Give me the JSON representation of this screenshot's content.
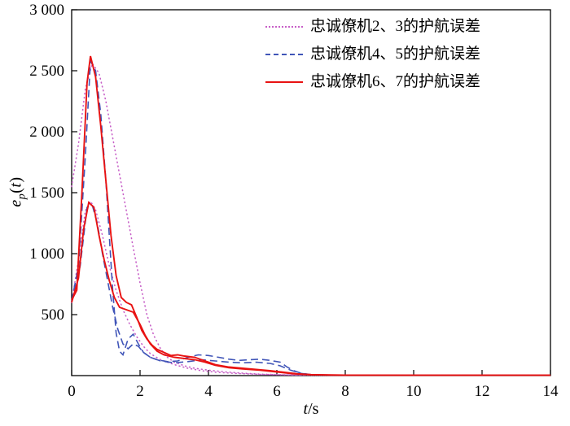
{
  "chart_data": {
    "type": "line",
    "title": "",
    "xlabel": {
      "var": "t",
      "unit": "/s"
    },
    "ylabel": {
      "base": "e",
      "sub": "p",
      "open": "(",
      "var": "t",
      "close": ")"
    },
    "xlim": [
      0,
      14
    ],
    "ylim": [
      0,
      3000
    ],
    "grid": false,
    "legend_position": "top-right-inside",
    "xticks": [
      0,
      2,
      4,
      6,
      8,
      10,
      12,
      14
    ],
    "xtick_labels": [
      "0",
      "2",
      "4",
      "6",
      "8",
      "10",
      "12",
      "14"
    ],
    "yticks": [
      500,
      1000,
      1500,
      2000,
      2500,
      3000
    ],
    "ytick_labels": [
      "500",
      "1 000",
      "1 500",
      "2 000",
      "2 500",
      "3 000"
    ],
    "series": [
      {
        "name": "忠诚僚机2、3的护航误差",
        "color": "#c75fc7",
        "dash": "dotted",
        "lines": [
          [
            [
              0,
              1550
            ],
            [
              0.2,
              1900
            ],
            [
              0.4,
              2350
            ],
            [
              0.6,
              2560
            ],
            [
              0.8,
              2480
            ],
            [
              1.0,
              2250
            ],
            [
              1.2,
              1950
            ],
            [
              1.4,
              1650
            ],
            [
              1.6,
              1350
            ],
            [
              1.8,
              1050
            ],
            [
              2.0,
              760
            ],
            [
              2.2,
              500
            ],
            [
              2.4,
              330
            ],
            [
              2.6,
              220
            ],
            [
              2.8,
              150
            ],
            [
              3.0,
              110
            ],
            [
              3.3,
              80
            ],
            [
              3.6,
              60
            ],
            [
              4.0,
              45
            ],
            [
              4.5,
              30
            ],
            [
              5.0,
              20
            ],
            [
              5.5,
              12
            ],
            [
              6.0,
              8
            ],
            [
              6.5,
              5
            ],
            [
              7.0,
              4
            ],
            [
              8.0,
              3
            ],
            [
              10.0,
              2
            ],
            [
              12.0,
              2
            ],
            [
              14.0,
              2
            ]
          ],
          [
            [
              0,
              600
            ],
            [
              0.2,
              950
            ],
            [
              0.4,
              1350
            ],
            [
              0.55,
              1430
            ],
            [
              0.7,
              1360
            ],
            [
              0.9,
              1150
            ],
            [
              1.1,
              900
            ],
            [
              1.3,
              700
            ],
            [
              1.5,
              540
            ],
            [
              1.7,
              420
            ],
            [
              1.9,
              320
            ],
            [
              2.1,
              240
            ],
            [
              2.3,
              180
            ],
            [
              2.6,
              130
            ],
            [
              3.0,
              90
            ],
            [
              3.4,
              60
            ],
            [
              3.8,
              40
            ],
            [
              4.2,
              28
            ],
            [
              4.8,
              18
            ],
            [
              5.5,
              10
            ],
            [
              6.0,
              7
            ],
            [
              6.5,
              5
            ],
            [
              7.0,
              4
            ],
            [
              8.0,
              3
            ],
            [
              14.0,
              2
            ]
          ]
        ]
      },
      {
        "name": "忠诚僚机4、5的护航误差",
        "color": "#4055b8",
        "dash": "dashed",
        "lines": [
          [
            [
              0,
              610
            ],
            [
              0.2,
              900
            ],
            [
              0.4,
              1800
            ],
            [
              0.55,
              2580
            ],
            [
              0.7,
              2500
            ],
            [
              0.85,
              2150
            ],
            [
              1.0,
              1600
            ],
            [
              1.1,
              1150
            ],
            [
              1.2,
              700
            ],
            [
              1.3,
              350
            ],
            [
              1.4,
              200
            ],
            [
              1.5,
              170
            ],
            [
              1.65,
              300
            ],
            [
              1.8,
              340
            ],
            [
              1.95,
              260
            ],
            [
              2.1,
              190
            ],
            [
              2.3,
              150
            ],
            [
              2.5,
              130
            ],
            [
              2.8,
              115
            ],
            [
              3.1,
              120
            ],
            [
              3.4,
              150
            ],
            [
              3.7,
              170
            ],
            [
              4.0,
              165
            ],
            [
              4.3,
              150
            ],
            [
              4.6,
              135
            ],
            [
              4.9,
              125
            ],
            [
              5.2,
              130
            ],
            [
              5.5,
              135
            ],
            [
              5.8,
              125
            ],
            [
              6.1,
              110
            ],
            [
              6.3,
              70
            ],
            [
              6.5,
              40
            ],
            [
              6.7,
              20
            ],
            [
              7.0,
              8
            ],
            [
              7.5,
              4
            ],
            [
              8.0,
              3
            ],
            [
              10.0,
              2
            ],
            [
              14.0,
              2
            ]
          ],
          [
            [
              0,
              600
            ],
            [
              0.25,
              900
            ],
            [
              0.45,
              1380
            ],
            [
              0.6,
              1400
            ],
            [
              0.75,
              1250
            ],
            [
              0.9,
              1000
            ],
            [
              1.05,
              780
            ],
            [
              1.2,
              560
            ],
            [
              1.35,
              380
            ],
            [
              1.5,
              260
            ],
            [
              1.65,
              220
            ],
            [
              1.8,
              260
            ],
            [
              1.95,
              240
            ],
            [
              2.1,
              190
            ],
            [
              2.3,
              150
            ],
            [
              2.6,
              120
            ],
            [
              3.0,
              105
            ],
            [
              3.4,
              115
            ],
            [
              3.8,
              130
            ],
            [
              4.2,
              120
            ],
            [
              4.6,
              110
            ],
            [
              5.0,
              105
            ],
            [
              5.4,
              110
            ],
            [
              5.8,
              100
            ],
            [
              6.1,
              80
            ],
            [
              6.4,
              45
            ],
            [
              6.7,
              18
            ],
            [
              7.0,
              7
            ],
            [
              8.0,
              3
            ],
            [
              14.0,
              2
            ]
          ]
        ]
      },
      {
        "name": "忠诚僚机6、7的护航误差",
        "color": "#e81212",
        "dash": "solid",
        "lines": [
          [
            [
              0,
              620
            ],
            [
              0.15,
              700
            ],
            [
              0.3,
              1500
            ],
            [
              0.45,
              2400
            ],
            [
              0.55,
              2620
            ],
            [
              0.7,
              2450
            ],
            [
              0.85,
              2050
            ],
            [
              1.0,
              1600
            ],
            [
              1.15,
              1150
            ],
            [
              1.3,
              820
            ],
            [
              1.45,
              640
            ],
            [
              1.6,
              600
            ],
            [
              1.75,
              580
            ],
            [
              1.9,
              480
            ],
            [
              2.05,
              370
            ],
            [
              2.2,
              300
            ],
            [
              2.35,
              250
            ],
            [
              2.5,
              215
            ],
            [
              2.7,
              190
            ],
            [
              2.9,
              165
            ],
            [
              3.1,
              170
            ],
            [
              3.3,
              160
            ],
            [
              3.6,
              150
            ],
            [
              3.9,
              120
            ],
            [
              4.2,
              90
            ],
            [
              4.6,
              70
            ],
            [
              5.0,
              60
            ],
            [
              5.4,
              50
            ],
            [
              5.8,
              40
            ],
            [
              6.2,
              28
            ],
            [
              6.6,
              15
            ],
            [
              7.0,
              8
            ],
            [
              7.5,
              5
            ],
            [
              8.0,
              4
            ],
            [
              10.0,
              3
            ],
            [
              12.0,
              3
            ],
            [
              14.0,
              3
            ]
          ],
          [
            [
              0,
              600
            ],
            [
              0.2,
              800
            ],
            [
              0.35,
              1200
            ],
            [
              0.5,
              1420
            ],
            [
              0.65,
              1380
            ],
            [
              0.8,
              1150
            ],
            [
              0.95,
              950
            ],
            [
              1.1,
              780
            ],
            [
              1.25,
              640
            ],
            [
              1.4,
              560
            ],
            [
              1.6,
              540
            ],
            [
              1.8,
              520
            ],
            [
              2.0,
              420
            ],
            [
              2.15,
              330
            ],
            [
              2.3,
              260
            ],
            [
              2.5,
              200
            ],
            [
              2.7,
              170
            ],
            [
              3.0,
              150
            ],
            [
              3.3,
              140
            ],
            [
              3.6,
              130
            ],
            [
              3.9,
              110
            ],
            [
              4.2,
              85
            ],
            [
              4.6,
              65
            ],
            [
              5.0,
              55
            ],
            [
              5.5,
              45
            ],
            [
              6.0,
              30
            ],
            [
              6.5,
              15
            ],
            [
              7.0,
              7
            ],
            [
              8.0,
              4
            ],
            [
              10.0,
              3
            ],
            [
              14.0,
              3
            ]
          ]
        ]
      }
    ]
  }
}
